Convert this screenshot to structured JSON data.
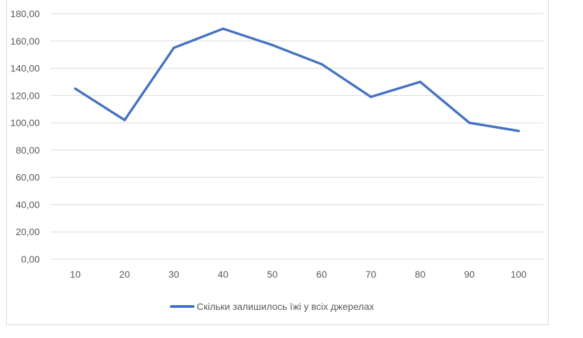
{
  "chart_data": {
    "type": "line",
    "title": "",
    "xlabel": "",
    "ylabel": "",
    "categories": [
      "10",
      "20",
      "30",
      "40",
      "50",
      "60",
      "70",
      "80",
      "90",
      "100"
    ],
    "series": [
      {
        "name": "Скільки залишилось їжі у всіх джерелах",
        "values": [
          125,
          102,
          155,
          169,
          157,
          143,
          119,
          130,
          100,
          94
        ]
      }
    ],
    "ylim": [
      0,
      180
    ],
    "y_ticks": [
      "0,00",
      "20,00",
      "40,00",
      "60,00",
      "80,00",
      "100,00",
      "120,00",
      "140,00",
      "160,00",
      "180,00"
    ],
    "grid": true,
    "legend_position": "bottom",
    "colors": {
      "series": "#4472c4",
      "grid": "#d9d9d9",
      "text": "#595959"
    }
  }
}
